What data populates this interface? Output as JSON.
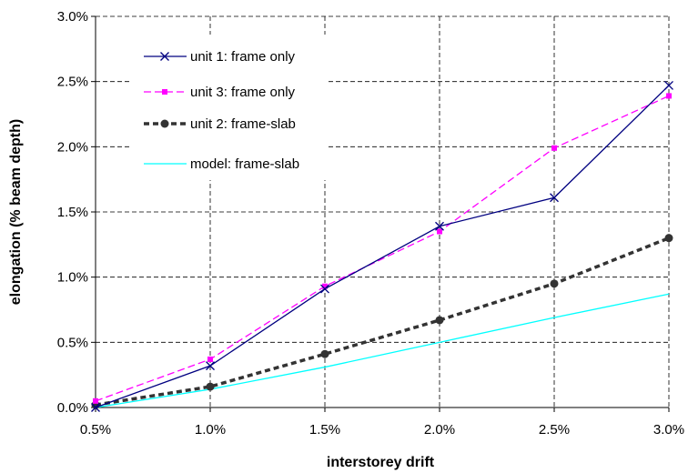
{
  "chart_data": {
    "type": "line",
    "title": "",
    "xlabel": "interstorey drift",
    "ylabel": "elongation (% beam depth)",
    "x": [
      0.5,
      1.0,
      1.5,
      2.0,
      2.5,
      3.0
    ],
    "xticks": [
      "0.5%",
      "1.0%",
      "1.5%",
      "2.0%",
      "2.5%",
      "3.0%"
    ],
    "yticks": [
      "0.0%",
      "0.5%",
      "1.0%",
      "1.5%",
      "2.0%",
      "2.5%",
      "3.0%"
    ],
    "xlim": [
      0.5,
      3.0
    ],
    "ylim": [
      0.0,
      3.0
    ],
    "grid": "dashed",
    "legend_position": "top-left",
    "series": [
      {
        "name": "unit 1: frame only",
        "values": [
          0.0,
          0.32,
          0.91,
          1.39,
          1.61,
          2.47
        ],
        "color": "#000080",
        "line_style": "solid",
        "marker": "x"
      },
      {
        "name": "unit 3: frame only",
        "values": [
          0.05,
          0.37,
          0.93,
          1.35,
          1.99,
          2.39
        ],
        "color": "#ff00ff",
        "line_style": "dashed",
        "marker": "square"
      },
      {
        "name": "unit 2: frame-slab",
        "values": [
          0.02,
          0.16,
          0.41,
          0.67,
          0.95,
          1.3
        ],
        "color": "#333333",
        "line_style": "dotted",
        "marker": "circle"
      },
      {
        "name": "model: frame-slab",
        "values": [
          0.0,
          0.14,
          0.31,
          0.5,
          0.69,
          0.87
        ],
        "color": "#00ffff",
        "line_style": "solid",
        "marker": "none"
      }
    ]
  }
}
